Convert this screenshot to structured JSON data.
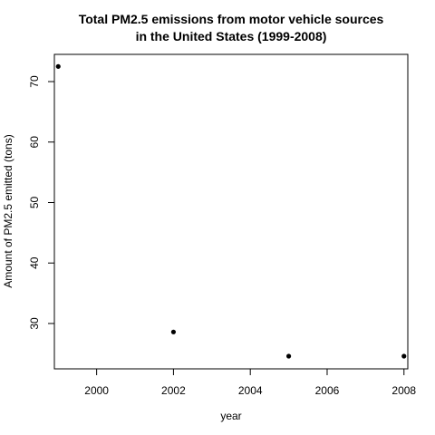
{
  "chart_data": {
    "type": "scatter",
    "title_lines": [
      "Total PM2.5 emissions from motor vehicle sources",
      "in the United States (1999-2008)"
    ],
    "xlabel": "year",
    "ylabel": "Amount of PM2.5 emitted (tons)",
    "xlim": [
      1998.9,
      2008.1
    ],
    "ylim": [
      22.5,
      74.5
    ],
    "x_ticks": [
      2000,
      2002,
      2004,
      2006,
      2008
    ],
    "y_ticks": [
      30,
      40,
      50,
      60,
      70
    ],
    "grid": false,
    "legend": "none",
    "point_color": "#000000",
    "points": [
      {
        "x": 1999,
        "y": 72.5
      },
      {
        "x": 2002,
        "y": 28.6
      },
      {
        "x": 2005,
        "y": 24.6
      },
      {
        "x": 2008,
        "y": 24.6
      }
    ]
  }
}
